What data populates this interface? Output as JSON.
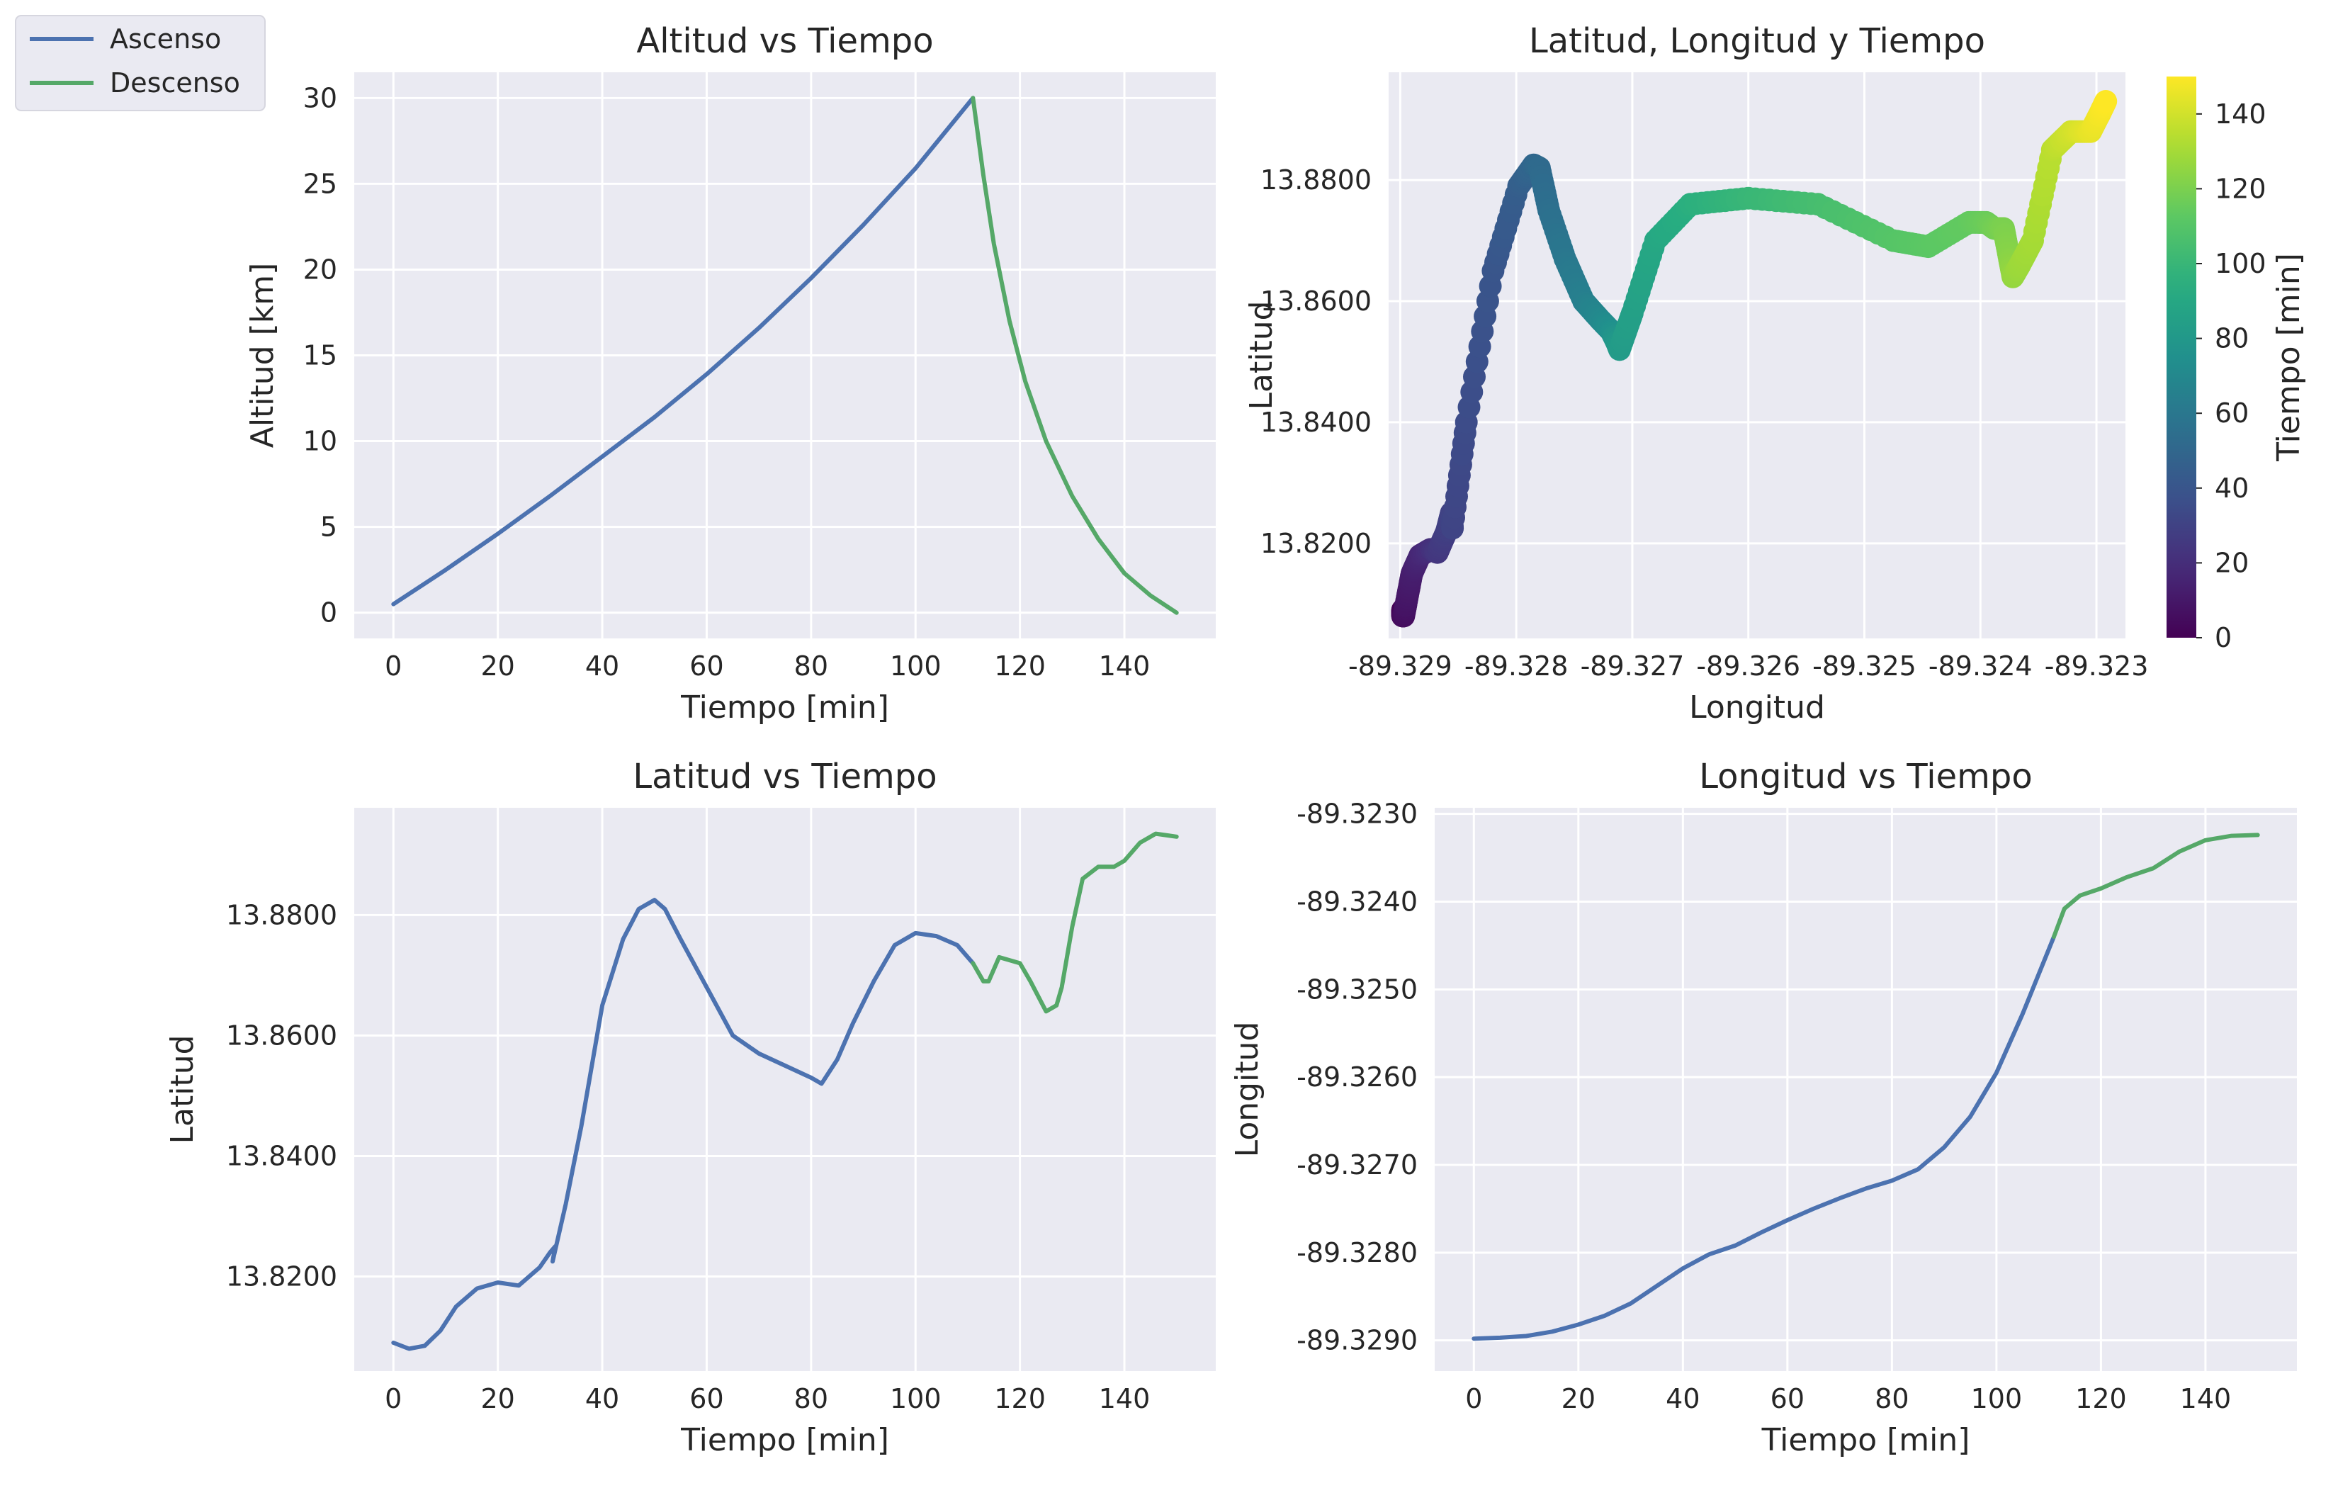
{
  "colors": {
    "ascent": "#4c72b0",
    "descent": "#55a868",
    "panel_bg": "#eaeaf2",
    "grid": "#ffffff",
    "text": "#262626"
  },
  "legend": {
    "entries": [
      {
        "label": "Ascenso",
        "color": "#4c72b0"
      },
      {
        "label": "Descenso",
        "color": "#55a868"
      }
    ],
    "placement": "top-left of figure"
  },
  "chart_data": [
    {
      "id": "altitud",
      "type": "line",
      "title": "Altitud vs Tiempo",
      "xlabel": "Tiempo [min]",
      "ylabel": "Altitud [km]",
      "xlim": [
        -7.5,
        157.5
      ],
      "ylim": [
        -1.5,
        31.5
      ],
      "xticks": [
        0,
        20,
        40,
        60,
        80,
        100,
        120,
        140
      ],
      "yticks": [
        0,
        5,
        10,
        15,
        20,
        25,
        30
      ],
      "ytick_labels": [
        "0",
        "5",
        "10",
        "15",
        "20",
        "25",
        "30"
      ],
      "grid": true,
      "series": [
        {
          "name": "Ascenso",
          "color": "#4c72b0",
          "x": [
            0,
            10,
            20,
            30,
            40,
            50,
            60,
            70,
            80,
            90,
            100,
            111
          ],
          "y": [
            0.5,
            2.5,
            4.6,
            6.8,
            9.1,
            11.4,
            13.9,
            16.6,
            19.5,
            22.6,
            25.9,
            30.0
          ]
        },
        {
          "name": "Descenso",
          "color": "#55a868",
          "x": [
            111,
            113,
            115,
            118,
            121,
            125,
            130,
            135,
            140,
            145,
            150
          ],
          "y": [
            30.0,
            25.5,
            21.5,
            17.0,
            13.5,
            10.0,
            6.8,
            4.3,
            2.3,
            1.0,
            0.0
          ]
        }
      ]
    },
    {
      "id": "latlon",
      "type": "scatter",
      "title": "Latitud, Longitud y Tiempo",
      "xlabel": "Longitud",
      "ylabel": "Latitud",
      "xlim": [
        -89.3291,
        -89.32275
      ],
      "ylim": [
        13.8043,
        13.8978
      ],
      "xticks": [
        -89.329,
        -89.328,
        -89.327,
        -89.326,
        -89.325,
        -89.324,
        -89.323
      ],
      "xtick_labels": [
        "-89.329",
        "-89.328",
        "-89.327",
        "-89.326",
        "-89.325",
        "-89.324",
        "-89.323"
      ],
      "yticks": [
        13.82,
        13.84,
        13.86,
        13.88
      ],
      "ytick_labels": [
        "13.8200",
        "13.8400",
        "13.8600",
        "13.8800"
      ],
      "grid": true,
      "colorbar": {
        "label": "Tiempo [min]",
        "min": 0,
        "max": 150,
        "ticks": [
          0,
          20,
          40,
          60,
          80,
          100,
          120,
          140
        ],
        "colormap": "viridis"
      },
      "points": {
        "t": [
          0,
          2,
          5,
          8,
          12,
          16,
          20,
          24,
          28,
          30,
          31,
          35,
          40,
          45,
          50,
          52,
          55,
          60,
          65,
          70,
          75,
          80,
          82,
          85,
          90,
          95,
          100,
          105,
          110,
          112,
          114,
          116,
          118,
          120,
          123,
          126,
          128,
          130,
          135,
          140,
          145,
          148,
          150
        ],
        "lon": [
          -89.32898,
          -89.32898,
          -89.32897,
          -89.32895,
          -89.3289,
          -89.32883,
          -89.32874,
          -89.32868,
          -89.3286,
          -89.32856,
          -89.32855,
          -89.32843,
          -89.3282,
          -89.32798,
          -89.32785,
          -89.3278,
          -89.32772,
          -89.32758,
          -89.32742,
          -89.32728,
          -89.32718,
          -89.32713,
          -89.32711,
          -89.327,
          -89.3268,
          -89.3265,
          -89.326,
          -89.3254,
          -89.32475,
          -89.32445,
          -89.3241,
          -89.32395,
          -89.32388,
          -89.3238,
          -89.32375,
          -89.32372,
          -89.32366,
          -89.32355,
          -89.32338,
          -89.32322,
          -89.32305,
          -89.32297,
          -89.32292
        ],
        "lat": [
          13.809,
          13.808,
          13.808,
          13.81,
          13.815,
          13.818,
          13.819,
          13.8185,
          13.822,
          13.825,
          13.8225,
          13.84,
          13.865,
          13.879,
          13.8825,
          13.882,
          13.875,
          13.867,
          13.86,
          13.857,
          13.855,
          13.853,
          13.852,
          13.858,
          13.87,
          13.876,
          13.877,
          13.876,
          13.87,
          13.869,
          13.873,
          13.873,
          13.872,
          13.872,
          13.867,
          13.864,
          13.866,
          13.87,
          13.885,
          13.888,
          13.888,
          13.891,
          13.893
        ]
      }
    },
    {
      "id": "latitud",
      "type": "line",
      "title": "Latitud vs Tiempo",
      "xlabel": "Tiempo [min]",
      "ylabel": "Latitud",
      "xlim": [
        -7.5,
        157.5
      ],
      "ylim": [
        13.8043,
        13.8978
      ],
      "xticks": [
        0,
        20,
        40,
        60,
        80,
        100,
        120,
        140
      ],
      "yticks": [
        13.82,
        13.84,
        13.86,
        13.88
      ],
      "ytick_labels": [
        "13.8200",
        "13.8400",
        "13.8600",
        "13.8800"
      ],
      "grid": true,
      "series": [
        {
          "name": "Ascenso",
          "color": "#4c72b0",
          "x": [
            0,
            3,
            6,
            9,
            12,
            16,
            20,
            24,
            28,
            30,
            31,
            30.5,
            33,
            36,
            40,
            44,
            47,
            50,
            52,
            55,
            60,
            65,
            70,
            75,
            80,
            82,
            85,
            88,
            92,
            96,
            100,
            104,
            108,
            111
          ],
          "y": [
            13.809,
            13.808,
            13.8085,
            13.811,
            13.815,
            13.818,
            13.819,
            13.8185,
            13.8215,
            13.824,
            13.825,
            13.8225,
            13.832,
            13.845,
            13.865,
            13.876,
            13.881,
            13.8825,
            13.881,
            13.876,
            13.868,
            13.86,
            13.857,
            13.855,
            13.853,
            13.852,
            13.856,
            13.862,
            13.869,
            13.875,
            13.877,
            13.8765,
            13.875,
            13.872
          ]
        },
        {
          "name": "Descenso",
          "color": "#55a868",
          "x": [
            111,
            113,
            114,
            116,
            118,
            120,
            122,
            125,
            127,
            128,
            130,
            132,
            135,
            138,
            140,
            143,
            146,
            150
          ],
          "y": [
            13.872,
            13.869,
            13.869,
            13.873,
            13.8725,
            13.872,
            13.869,
            13.864,
            13.865,
            13.868,
            13.878,
            13.886,
            13.888,
            13.888,
            13.889,
            13.892,
            13.8935,
            13.893
          ]
        }
      ]
    },
    {
      "id": "longitud",
      "type": "line",
      "title": "Longitud vs Tiempo",
      "xlabel": "Tiempo [min]",
      "ylabel": "Longitud",
      "xlim": [
        -7.5,
        157.5
      ],
      "ylim": [
        -89.32935,
        -89.32293
      ],
      "xticks": [
        0,
        20,
        40,
        60,
        80,
        100,
        120,
        140
      ],
      "yticks": [
        -89.329,
        -89.328,
        -89.327,
        -89.326,
        -89.325,
        -89.324,
        -89.323
      ],
      "ytick_labels": [
        "-89.3290",
        "-89.3280",
        "-89.3270",
        "-89.3260",
        "-89.3250",
        "-89.3240",
        "-89.3230"
      ],
      "grid": true,
      "series": [
        {
          "name": "Ascenso",
          "color": "#4c72b0",
          "x": [
            0,
            5,
            10,
            15,
            20,
            25,
            30,
            35,
            40,
            45,
            50,
            55,
            60,
            65,
            70,
            75,
            80,
            85,
            90,
            95,
            100,
            105,
            111
          ],
          "y": [
            -89.32898,
            -89.32897,
            -89.32895,
            -89.3289,
            -89.32882,
            -89.32872,
            -89.32858,
            -89.32838,
            -89.32818,
            -89.32802,
            -89.32792,
            -89.32777,
            -89.32763,
            -89.3275,
            -89.32738,
            -89.32727,
            -89.32718,
            -89.32705,
            -89.3268,
            -89.32645,
            -89.32595,
            -89.32528,
            -89.3244
          ]
        },
        {
          "name": "Descenso",
          "color": "#55a868",
          "x": [
            111,
            113,
            116,
            120,
            125,
            130,
            135,
            140,
            145,
            150
          ],
          "y": [
            -89.3244,
            -89.32408,
            -89.32393,
            -89.32385,
            -89.32372,
            -89.32362,
            -89.32343,
            -89.3233,
            -89.32325,
            -89.32324
          ]
        }
      ]
    }
  ]
}
